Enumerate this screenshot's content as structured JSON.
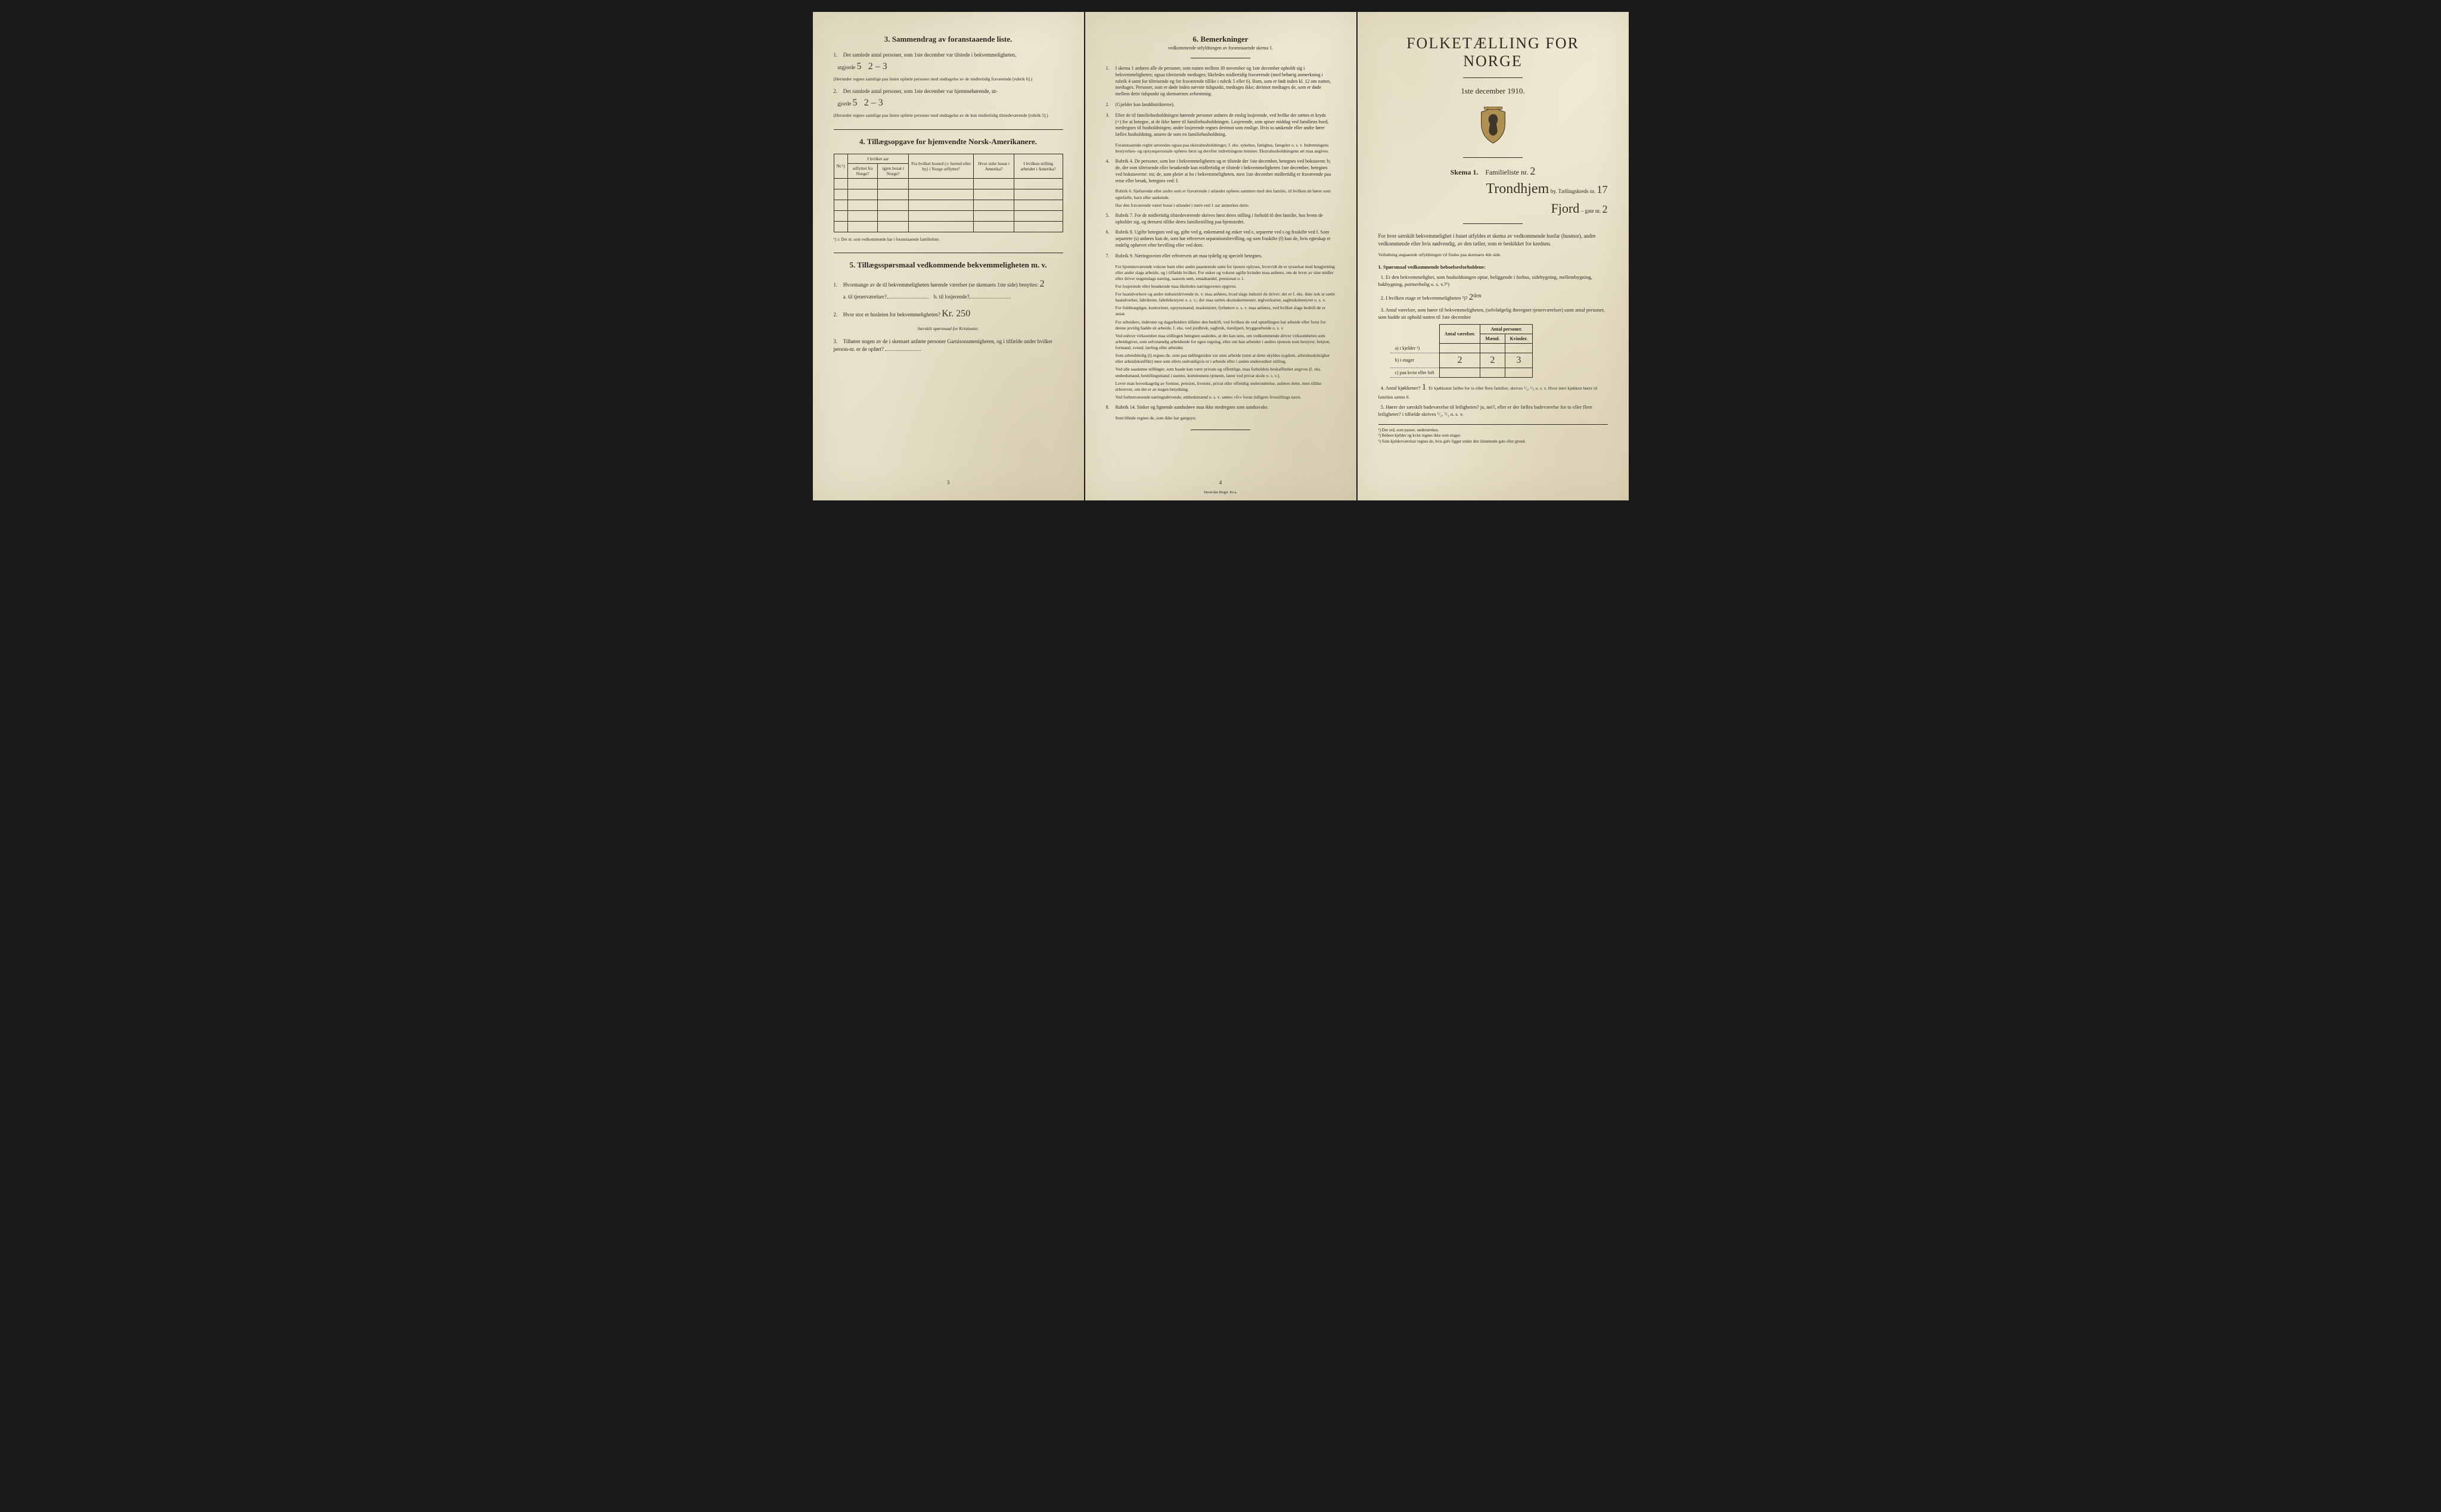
{
  "page3": {
    "section3_title": "3.  Sammendrag av foranstaaende liste.",
    "item1_text": "Det samlede antal personer, som 1ste december var tilstede i bekvemmeligheten,",
    "item1_prefix": "utgjorde",
    "item1_value1": "5",
    "item1_value2": "2 – 3",
    "item1_note": "(Herunder regnes samtlige paa listen opførte personer med undtagelse av de midlertidig fraværende [rubrik 6].)",
    "item2_text": "Det samlede antal personer, som 1ste december var hjemmehørende, ut-",
    "item2_prefix": "gjorde",
    "item2_value1": "5",
    "item2_value2": "2 – 3",
    "item2_note": "(Herunder regnes samtlige paa listen opførte personer med undtagelse av de kun midlertidig tilstedeværende [rubrik 5].)",
    "section4_title": "4.  Tillægsopgave for hjemvendte Norsk-Amerikanere.",
    "table4_headers": {
      "nr": "Nr.¹)",
      "hvilket_aar": "I hvilket aar",
      "utflyttet": "utflyttet fra Norge?",
      "igjen": "igjen bosat i Norge?",
      "bosted": "Fra hvilket bosted (ɔ: herred eller by) i Norge utflyttet?",
      "sidst": "Hvor sidst bosat i Amerika?",
      "stilling": "I hvilken stilling arbeidet i Amerika?"
    },
    "footnote4": "¹) ɔ: Det nr. som vedkommende har i foranstaaende familieliste.",
    "section5_title": "5.  Tillægsspørsmaal vedkommende bekvemmeligheten m. v.",
    "q5_1": "Hvormange av de til bekvemmeligheten hørende værelser (se skemaets 1ste side) benyttes:",
    "q5_1_value": "2",
    "q5_1a": "a. til tjenerværelser?",
    "q5_1b": "b. til losjerende?",
    "q5_2": "Hvor stor er husleien for bekvemmeligheten?",
    "q5_2_value": "Kr. 250",
    "q5_2_note": "Særskilt spørsmaal for Kristiania:",
    "q5_3": "Tilhører nogen av de i skemaet anførte personer Garnisonsmenigheten, og i tilfælde under hvilket person-nr. er de opført?",
    "page_number": "3"
  },
  "page4": {
    "title": "6.  Bemerkninger",
    "subtitle": "vedkommende utfyldningen av foranstaaende skema 1.",
    "items": [
      {
        "n": "1.",
        "t": "I skema 1 anføres alle de personer, som natten mellem 30 november og 1ste december opholdt sig i bekvemmeligheten; ogsaa tilreisende medtages; likeledes midlertidig fraværende (med behørig anmerkning i rubrik 4 samt for tilreisende og for fraværende tillike i rubrik 5 eller 6). Barn, som er født inden kl. 12 om natten, medtages. Personer, som er døde inden nævnte tidspunkt, medtages ikke; derimot medtages de, som er døde mellem dette tidspunkt og skemaernes avhentning."
      },
      {
        "n": "2.",
        "t": "(Gjælder kun landdistrikterne)."
      },
      {
        "n": "3.",
        "t": "Efter de til familiehusholdningen hørende personer anføres de enslig losjerende, ved hvilke der sættes et kryds (×) for at betegne, at de ikke hører til familiehusholdningen. Losjerende, som spiser middag ved familiens bord, medregnes til husholdningen; andre losjerende regnes derimot som enslige. Hvis to søskende eller andre fører fælles husholdning, ansees de som en familiehusholdning."
      },
      {
        "n": "",
        "t": "Foranstaaende regler anvendes ogsaa paa ekstrahusholdninger, f. eks. sykehus, fattighus, fængsler o. s. v. Indretningens bestyrelses- og opsynspersonale opføres først og derefter indretningens lemmer. Ekstrahusholdningens art maa angives."
      },
      {
        "n": "4.",
        "t": "Rubrik 4. De personer, som bor i bekvemmeligheten og er tilstede der 1ste december, betegnes ved bokstaven: b; de, der som tilreisende eller besøkende kun midlertidig er tilstede i bekvemmeligheten 1ste december, betegnes ved bokstaverne: mt; de, som pleier at bo i bekvemmeligheten, men 1ste december midlertidig er fraværende paa reise eller besøk, betegnes ved: f."
      },
      {
        "n": "",
        "t": "Rubrik 6. Sjøfarende eller andre som er fraværende i utlandet opføres sammen med den familie, til hvilken de hører som egtefælle, barn eller søskende."
      },
      {
        "n": "",
        "t": "Har den fraværende været bosat i utlandet i mere end 1 aar anmerkes dette."
      },
      {
        "n": "5.",
        "t": "Rubrik 7. For de midlertidig tilstedeværende skrives først deres stilling i forhold til den familie, hos hvem de opholder sig, og dernæst tillike deres familiestilling paa hjemstedet."
      },
      {
        "n": "6.",
        "t": "Rubrik 8. Ugifte betegnes ved ug, gifte ved g, enkemænd og enker ved e, separerte ved s og fraskilte ved f. Som separerte (s) anføres kun de, som har erhvervet separationsbevilling, og som fraskilte (f) kun de, hvis egteskap er endelig ophævet efter bevilling eller ved dom."
      },
      {
        "n": "7.",
        "t": "Rubrik 9. Næringsveien eller erhvervets art maa tydelig og specielt betegnes."
      },
      {
        "n": "",
        "t": "For hjemmeværende voksne barn eller andre paarørende samt for tjenere oplyses, hvorvidt de er sysselsat med husgjerning eller andet slags arbeide, og i tilfælde hvilket. For enker og voksne ugifte kvinder maa anføres, om de lever av sine midler eller driver nogenslags næring, saasom søm, smaahandel, pensionat o. l."
      },
      {
        "n": "",
        "t": "For losjerende eller besøkende maa likeledes næringsveien opgives."
      },
      {
        "n": "",
        "t": "For haandverkere og andre industridrivende m. v. maa anføres, hvad slags industri de driver; det er f. eks. ikke nok at sætte haandverker, fabrikeier, fabrikbestyrer o. s. v.; der maa sættes skomaker­mester, teglverkseier, sagbruksbestyrer o. s. v."
      },
      {
        "n": "",
        "t": "For fuldmægtiger, kontorister, opsynsmænd, maskinister, fyrbøtere o. s. v. maa anføres, ved hvilket slags bedrift de er ansat."
      },
      {
        "n": "",
        "t": "For arbeidere, inderster og dagarbeidere tilføies den bedrift, ved hvilken de ved optællingen har arbeide eller forut for denne jevnlig hadde sit arbeide, f. eks. ved jordbruk, sagbruk, træsliperi, bryggearbeide o. s. v."
      },
      {
        "n": "",
        "t": "Ved enhver virksomhet maa stillingen betegnes saaledes, at det kan sees, om vedkommende driver virksomheten som arbeidsgiver, som selvstændig arbeidende for egen regning, eller om han arbeider i andres tjeneste som bestyrer, betjent, formand, svend, lærling eller arbeider."
      },
      {
        "n": "",
        "t": "Som arbeidsledig (l) regnes de, som paa tællingstiden var uten arbeide (uten at dette skyldes sygdom, arbeidsudyktighet eller arbeidskonflikt) men som ellers sedvanligvis er i arbeide eller i anden underordnet stilling."
      },
      {
        "n": "",
        "t": "Ved alle saadanne stillinger, som baade kan være private og offentlige, maa forholdets beskaffenhet angives (f. eks. embedsmand, bestillingsmand i statens, kommunens tjeneste, lærer ved privat skole o. s. v.)."
      },
      {
        "n": "",
        "t": "Lever man hovedsagelig av formue, pension, livrente, privat eller offentlig understøttelse, anføres dette, men tillike erhvervet, om det er av nogen betydning."
      },
      {
        "n": "",
        "t": "Ved forhenværende næringsdrivende, embedsmænd o. s. v. sættes «fv» foran tidligere livsstillings navn."
      },
      {
        "n": "8.",
        "t": "Rubrik 14. Sinker og lignende aandssløve maa ikke medregnes som aandssvake."
      },
      {
        "n": "",
        "t": "Som blinde regnes de, som ikke har gangsyn."
      }
    ],
    "page_number": "4",
    "printer": "Steen'ske Bogtr.  Kr.a."
  },
  "page1": {
    "main_title": "FOLKETÆLLING FOR NORGE",
    "subtitle": "1ste december 1910.",
    "skema": "Skema 1.",
    "fam_label": "Familieliste nr.",
    "fam_nr": "2",
    "city_hw": "Trondhjem",
    "city_suffix": "by.  Tællingskreds nr.",
    "kreds_nr": "17",
    "gate_hw": "Fjord",
    "gate_suffix": "– gate nr.",
    "gate_nr": "2",
    "intro": "For hver særskilt bekvemmelighet i huset utfyldes et skema av vedkommende husfar (husmor), andre vedkommende eller hvis nødvendig, av den tæller, som er beskikket for kredsen.",
    "intro_note": "Veiledning angaaende utfyldningen vil findes paa skemaets 4de side.",
    "q1_title": "1. Spørsmaal vedkommende beboelsesforholdene:",
    "q1_1": "Er den bekvemmelighet, som husholdningen optar, beliggende i forhus, sidebygning, mellembygning, bakbygning, portnerbolig o. s. v.?¹)",
    "q1_2_label": "I hvilken etage er bekvemmeligheten ²)?",
    "q1_2_value": "2ᵈᵉⁿ",
    "q1_3": "Antal værelser, som hører til bekvemmeligheten, (selvfølgelig iberegnet tjenerværelser) samt antal personer, som hadde sit ophold natten til 1ste december",
    "table_headers": {
      "rooms": "Antal værelser.",
      "persons": "Antal personer.",
      "men": "Mænd.",
      "women": "Kvinder."
    },
    "rows": {
      "a_label": "a) i kjelder ²)",
      "b_label": "b) i etager",
      "b_rooms": "2",
      "b_men": "2",
      "b_women": "3",
      "c_label": "c) paa kvist eller loft"
    },
    "q1_4_label": "Antal kjøkkener?",
    "q1_4_value": "1",
    "q1_4_rest": "Er kjøkkenet fælles for to eller flere familier, skrives ¹/₂, ¹/₃ o. s. v.   Hvor intet kjøkken hører til familien sættes 0.",
    "q1_5": "Hører der særskilt badeværelse til leiligheten?  ja, nei?, eller er der fælles badeværelse for to eller flere leiligheter?  i tilfælde skrives ¹/₂, ¹/₃ o. s. v.",
    "q1_5_value": "nei",
    "foot1": "¹) Det ord, som passer, understrekes.",
    "foot2": "²) Bebeot kjelder og kvist regnes ikke som etager.",
    "foot3": "³) Som kjelderværelser regnes de, hvis gulv ligger under den tilstøtende gate eller grund."
  },
  "colors": {
    "paper": "#e8e2cc",
    "ink": "#2a2520",
    "handwriting": "#3a3228",
    "bg": "#1a1a1a"
  }
}
